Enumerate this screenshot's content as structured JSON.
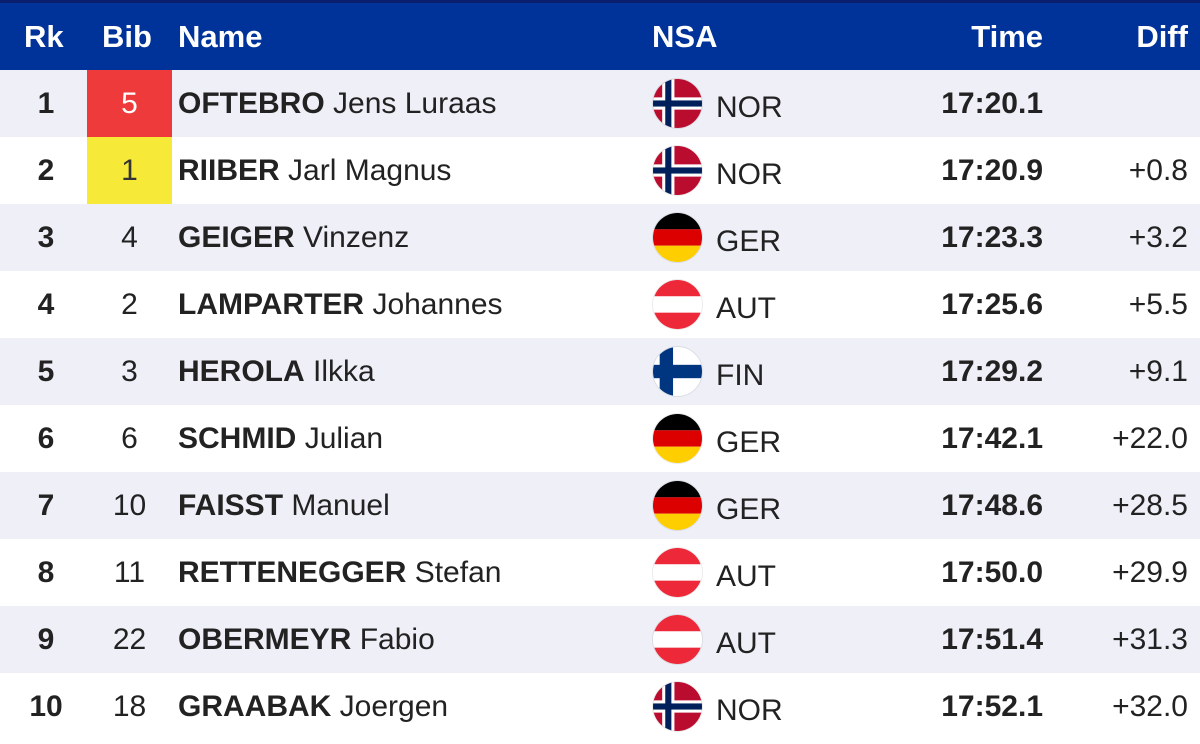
{
  "header": {
    "rank": "Rk",
    "bib": "Bib",
    "name": "Name",
    "nsa": "NSA",
    "time": "Time",
    "diff": "Diff"
  },
  "colors": {
    "header_bg": "#003399",
    "row_alt": "#eeeff7",
    "bib_red": "#ee3a3a",
    "bib_yellow": "#f7e938"
  },
  "rows": [
    {
      "rank": "1",
      "bib": "5",
      "bib_highlight": "red",
      "last": "OFTEBRO",
      "first": "Jens Luraas",
      "nsa": "NOR",
      "flag": "norway-flag-icon",
      "time": "17:20.1",
      "diff": ""
    },
    {
      "rank": "2",
      "bib": "1",
      "bib_highlight": "yellow",
      "last": "RIIBER",
      "first": "Jarl Magnus",
      "nsa": "NOR",
      "flag": "norway-flag-icon",
      "time": "17:20.9",
      "diff": "+0.8"
    },
    {
      "rank": "3",
      "bib": "4",
      "bib_highlight": "",
      "last": "GEIGER",
      "first": "Vinzenz",
      "nsa": "GER",
      "flag": "germany-flag-icon",
      "time": "17:23.3",
      "diff": "+3.2"
    },
    {
      "rank": "4",
      "bib": "2",
      "bib_highlight": "",
      "last": "LAMPARTER",
      "first": "Johannes",
      "nsa": "AUT",
      "flag": "austria-flag-icon",
      "time": "17:25.6",
      "diff": "+5.5"
    },
    {
      "rank": "5",
      "bib": "3",
      "bib_highlight": "",
      "last": "HEROLA",
      "first": "Ilkka",
      "nsa": "FIN",
      "flag": "finland-flag-icon",
      "time": "17:29.2",
      "diff": "+9.1"
    },
    {
      "rank": "6",
      "bib": "6",
      "bib_highlight": "",
      "last": "SCHMID",
      "first": "Julian",
      "nsa": "GER",
      "flag": "germany-flag-icon",
      "time": "17:42.1",
      "diff": "+22.0"
    },
    {
      "rank": "7",
      "bib": "10",
      "bib_highlight": "",
      "last": "FAISST",
      "first": "Manuel",
      "nsa": "GER",
      "flag": "germany-flag-icon",
      "time": "17:48.6",
      "diff": "+28.5"
    },
    {
      "rank": "8",
      "bib": "11",
      "bib_highlight": "",
      "last": "RETTENEGGER",
      "first": "Stefan",
      "nsa": "AUT",
      "flag": "austria-flag-icon",
      "time": "17:50.0",
      "diff": "+29.9"
    },
    {
      "rank": "9",
      "bib": "22",
      "bib_highlight": "",
      "last": "OBERMEYR",
      "first": "Fabio",
      "nsa": "AUT",
      "flag": "austria-flag-icon",
      "time": "17:51.4",
      "diff": "+31.3"
    },
    {
      "rank": "10",
      "bib": "18",
      "bib_highlight": "",
      "last": "GRAABAK",
      "first": "Joergen",
      "nsa": "NOR",
      "flag": "norway-flag-icon",
      "time": "17:52.1",
      "diff": "+32.0"
    }
  ]
}
